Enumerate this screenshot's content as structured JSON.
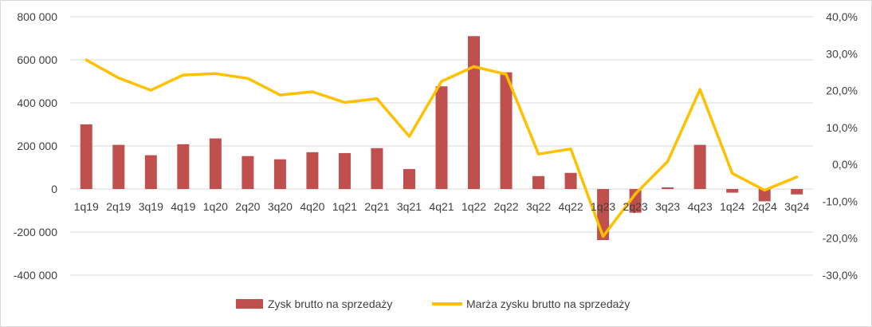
{
  "chart_data": {
    "type": "bar+line",
    "title": "",
    "xlabel": "",
    "ylabel": "",
    "categories": [
      "1q19",
      "2q19",
      "3q19",
      "4q19",
      "1q20",
      "2q20",
      "3q20",
      "4q20",
      "1q21",
      "2q21",
      "3q21",
      "4q21",
      "1q22",
      "2q22",
      "3q22",
      "4q22",
      "1q23",
      "2q23",
      "3q23",
      "4q23",
      "1q24",
      "2q24",
      "3q24"
    ],
    "series": [
      {
        "name": "Zysk brutto na sprzedaży",
        "kind": "bar",
        "axis": "left",
        "color": "#C0504D",
        "values": [
          300000,
          205000,
          157000,
          208000,
          235000,
          153000,
          138000,
          171000,
          167000,
          190000,
          93000,
          477000,
          710000,
          542000,
          60000,
          75000,
          -237000,
          -110000,
          8000,
          205000,
          -17000,
          -57000,
          -25000
        ]
      },
      {
        "name": "Marża zysku brutto na sprzedaży",
        "kind": "line",
        "axis": "right",
        "color": "#FFC000",
        "values": [
          28.3,
          23.4,
          20.1,
          24.2,
          24.6,
          23.3,
          18.8,
          19.7,
          16.8,
          17.8,
          7.6,
          22.5,
          26.5,
          24.4,
          2.8,
          4.2,
          -19.5,
          -8.0,
          0.8,
          20.3,
          -2.4,
          -7.0,
          -3.4
        ]
      }
    ],
    "y_left": {
      "ylim": [
        -400000,
        800000
      ],
      "ticks": [
        -400000,
        -200000,
        0,
        200000,
        400000,
        600000,
        800000
      ],
      "tick_labels": [
        "-400 000",
        "-200 000",
        "0",
        "200 000",
        "400 000",
        "600 000",
        "800 000"
      ]
    },
    "y_right": {
      "ylim": [
        -30,
        40
      ],
      "ticks": [
        -30,
        -20,
        -10,
        0,
        10,
        20,
        30,
        40
      ],
      "tick_labels": [
        "-30,0%",
        "-20,0%",
        "-10,0%",
        "0,0%",
        "10,0%",
        "20,0%",
        "30,0%",
        "40,0%"
      ]
    },
    "grid": true,
    "legend": "bottom-center"
  }
}
